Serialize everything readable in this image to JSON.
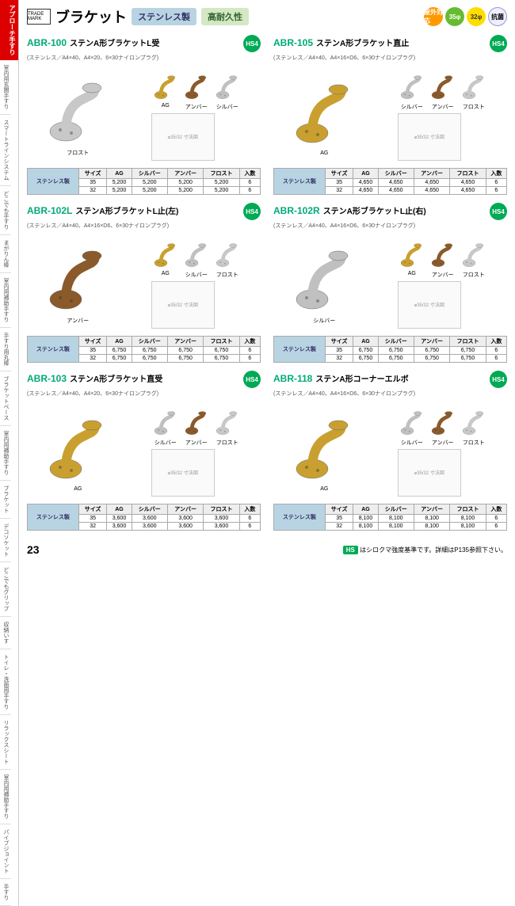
{
  "sidebar": {
    "red": "アプローチ手すり",
    "items": [
      "室内用玄関手すり",
      "スマートラインシステム",
      "どこでも手すり",
      "まがりん棒",
      "室内用補助手すり",
      "手すり用丸棒",
      "ブラケットベース",
      "室内用補助手すり",
      "ブラケット",
      "デコソケット",
      "どこでもグリップ",
      "収納いす",
      "トイレ・洗面用手すり",
      "リラックスシート",
      "室内用補助手すり",
      "パイプジョイント",
      "手すり"
    ]
  },
  "header": {
    "logo": "TRADE MARK",
    "title": "ブラケット",
    "badge_steel": "ステンレス製",
    "badge_dur": "高耐久性",
    "outdoor": "屋外対応",
    "d35": "35φ",
    "d32": "32φ",
    "anti": "抗菌"
  },
  "products": [
    {
      "code": "ABR-100",
      "name": "ステンA形ブラケットL受",
      "hs": "HS4",
      "sub": "(ステンレス／A4×40、A4×20、6×30ナイロンプラグ)",
      "main_label": "フロスト",
      "main_color": "#c8c8c8",
      "variants": [
        {
          "l": "AG",
          "c": "#c9a030"
        },
        {
          "l": "アンバー",
          "c": "#8a5a2a"
        },
        {
          "l": "シルバー",
          "c": "#c0c0c0"
        }
      ],
      "cols": [
        "サイズ",
        "AG",
        "シルバー",
        "アンバー",
        "フロスト",
        "入数"
      ],
      "rows": [
        [
          "35",
          "5,200",
          "5,200",
          "5,200",
          "5,200",
          "6"
        ],
        [
          "32",
          "5,200",
          "5,200",
          "5,200",
          "5,200",
          "6"
        ]
      ]
    },
    {
      "code": "ABR-105",
      "name": "ステンA形ブラケット直止",
      "hs": "HS4",
      "sub": "(ステンレス／A4×40、A4×16×D6、6×30ナイロンプラグ)",
      "main_label": "AG",
      "main_color": "#c9a030",
      "variants": [
        {
          "l": "シルバー",
          "c": "#c0c0c0"
        },
        {
          "l": "アンバー",
          "c": "#8a5a2a"
        },
        {
          "l": "フロスト",
          "c": "#c8c8c8"
        }
      ],
      "cols": [
        "サイズ",
        "AG",
        "シルバー",
        "アンバー",
        "フロスト",
        "入数"
      ],
      "rows": [
        [
          "35",
          "4,650",
          "4,650",
          "4,650",
          "4,650",
          "6"
        ],
        [
          "32",
          "4,650",
          "4,650",
          "4,650",
          "4,650",
          "6"
        ]
      ]
    },
    {
      "code": "ABR-102L",
      "name": "ステンA形ブラケットL止(左)",
      "hs": "HS4",
      "sub": "(ステンレス／A4×40、A4×16×D6、6×30ナイロンプラグ)",
      "main_label": "アンバー",
      "main_color": "#8a5a2a",
      "variants": [
        {
          "l": "AG",
          "c": "#c9a030"
        },
        {
          "l": "シルバー",
          "c": "#c0c0c0"
        },
        {
          "l": "フロスト",
          "c": "#c8c8c8"
        }
      ],
      "cols": [
        "サイズ",
        "AG",
        "シルバー",
        "アンバー",
        "フロスト",
        "入数"
      ],
      "rows": [
        [
          "35",
          "6,750",
          "6,750",
          "6,750",
          "6,750",
          "6"
        ],
        [
          "32",
          "6,750",
          "6,750",
          "6,750",
          "6,750",
          "6"
        ]
      ]
    },
    {
      "code": "ABR-102R",
      "name": "ステンA形ブラケットL止(右)",
      "hs": "HS4",
      "sub": "(ステンレス／A4×40、A4×16×D6、6×30ナイロンプラグ)",
      "main_label": "シルバー",
      "main_color": "#c0c0c0",
      "variants": [
        {
          "l": "AG",
          "c": "#c9a030"
        },
        {
          "l": "アンバー",
          "c": "#8a5a2a"
        },
        {
          "l": "フロスト",
          "c": "#c8c8c8"
        }
      ],
      "cols": [
        "サイズ",
        "AG",
        "シルバー",
        "アンバー",
        "フロスト",
        "入数"
      ],
      "rows": [
        [
          "35",
          "6,750",
          "6,750",
          "6,750",
          "6,750",
          "6"
        ],
        [
          "32",
          "6,750",
          "6,750",
          "6,750",
          "6,750",
          "6"
        ]
      ]
    },
    {
      "code": "ABR-103",
      "name": "ステンA形ブラケット直受",
      "hs": "HS4",
      "sub": "(ステンレス／A4×40、A4×20、6×30ナイロンプラグ)",
      "main_label": "AG",
      "main_color": "#c9a030",
      "variants": [
        {
          "l": "シルバー",
          "c": "#c0c0c0"
        },
        {
          "l": "アンバー",
          "c": "#8a5a2a"
        },
        {
          "l": "フロスト",
          "c": "#c8c8c8"
        }
      ],
      "cols": [
        "サイズ",
        "AG",
        "シルバー",
        "アンバー",
        "フロスト",
        "入数"
      ],
      "rows": [
        [
          "35",
          "3,600",
          "3,600",
          "3,600",
          "3,600",
          "6"
        ],
        [
          "32",
          "3,600",
          "3,600",
          "3,600",
          "3,600",
          "6"
        ]
      ]
    },
    {
      "code": "ABR-118",
      "name": "ステンA形コーナーエルボ",
      "hs": "HS4",
      "sub": "(ステンレス／A4×40、A4×16×D6、6×30ナイロンプラグ)",
      "main_label": "AG",
      "main_color": "#c9a030",
      "variants": [
        {
          "l": "シルバー",
          "c": "#c0c0c0"
        },
        {
          "l": "アンバー",
          "c": "#8a5a2a"
        },
        {
          "l": "フロスト",
          "c": "#c8c8c8"
        }
      ],
      "cols": [
        "サイズ",
        "AG",
        "シルバー",
        "アンバー",
        "フロスト",
        "入数"
      ],
      "rows": [
        [
          "35",
          "8,100",
          "8,100",
          "8,100",
          "8,100",
          "6"
        ],
        [
          "32",
          "8,100",
          "8,100",
          "8,100",
          "8,100",
          "6"
        ]
      ]
    }
  ],
  "table_label": "ステンレス製",
  "footer": {
    "page": "23",
    "hs": "HS",
    "note": "はシロクマ強度基準です。詳細はP135参照下さい。"
  }
}
